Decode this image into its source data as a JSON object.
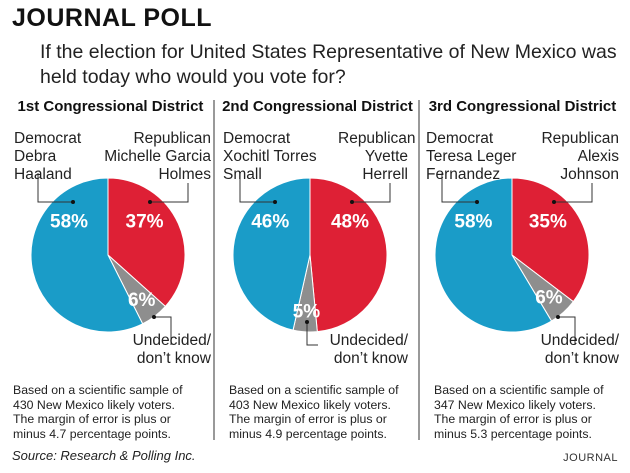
{
  "title": "JOURNAL POLL",
  "question": "If the election for United States Representative of New Mexico was held today who would you vote for?",
  "colors": {
    "democrat": "#1a9cc8",
    "republican": "#de2035",
    "undecided": "#8e8e8e"
  },
  "chart_data": [
    {
      "type": "pie",
      "title": "1st Congressional District",
      "slices": [
        {
          "label": "Republican Michelle Garcia Holmes",
          "party": "Republican",
          "candidate": "Michelle Garcia Holmes",
          "value": 37,
          "display": "37%"
        },
        {
          "label": "Undecided/ don't know",
          "value": 6,
          "display": "6%"
        },
        {
          "label": "Democrat Debra Haaland",
          "party": "Democrat",
          "candidate": "Debra Haaland",
          "value": 58,
          "display": "58%"
        }
      ],
      "note": "Based on a scientific sample of 430 New Mexico likely voters. The margin of error is plus or minus 4.7 percentage points."
    },
    {
      "type": "pie",
      "title": "2nd Congressional District",
      "slices": [
        {
          "label": "Republican Yvette Herrell",
          "party": "Republican",
          "candidate": "Yvette Herrell",
          "value": 48,
          "display": "48%"
        },
        {
          "label": "Undecided/ don't know",
          "value": 5,
          "display": "5%"
        },
        {
          "label": "Democrat Xochitl Torres Small",
          "party": "Democrat",
          "candidate": "Xochitl Torres Small",
          "value": 46,
          "display": "46%"
        }
      ],
      "note": "Based on a scientific sample of 403 New Mexico likely voters. The margin of error is plus or minus 4.9 percentage points."
    },
    {
      "type": "pie",
      "title": "3rd Congressional District",
      "slices": [
        {
          "label": "Republican Alexis Johnson",
          "party": "Republican",
          "candidate": "Alexis Johnson",
          "value": 35,
          "display": "35%"
        },
        {
          "label": "Undecided/ don't know",
          "value": 6,
          "display": "6%"
        },
        {
          "label": "Democrat Teresa Leger Fernandez",
          "party": "Democrat",
          "candidate": "Teresa Leger Fernandez",
          "value": 58,
          "display": "58%"
        }
      ],
      "note": "Based on a scientific sample of 347 New Mexico likely voters. The margin of error is plus or minus 5.3 percentage points."
    }
  ],
  "labels": {
    "democrat": "Democrat",
    "republican": "Republican",
    "undecided_1": "Undecided/",
    "undecided_2": "don’t know"
  },
  "source": "Source: Research & Polling Inc.",
  "brand": "JOURNAL"
}
